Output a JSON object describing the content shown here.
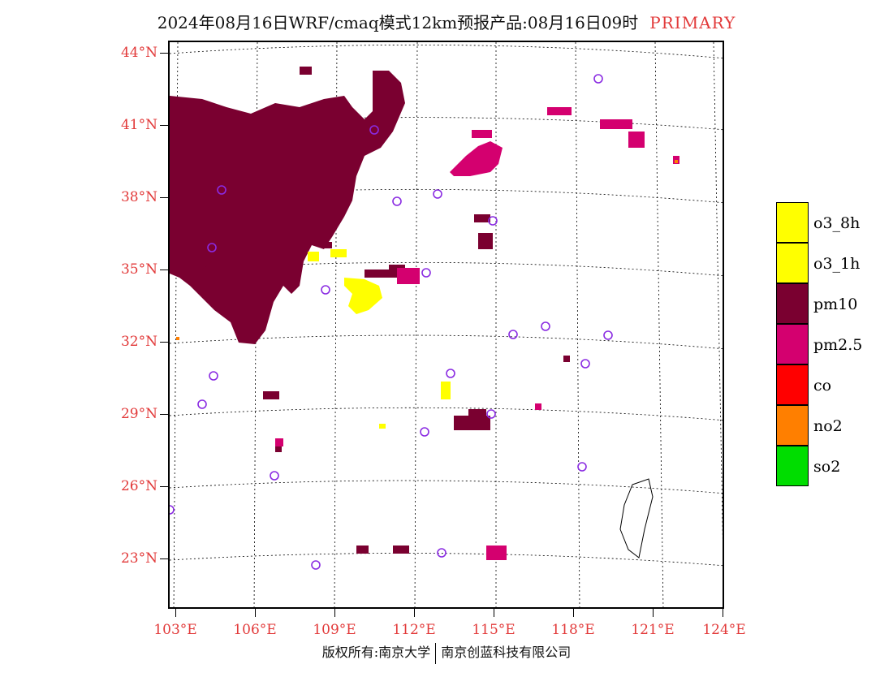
{
  "title": {
    "text": "2024年08月16日WRF/cmaq模式12km预报产品:08月16日09时",
    "tag": "PRIMARY"
  },
  "lat_labels": [
    "44°N",
    "41°N",
    "38°N",
    "35°N",
    "32°N",
    "29°N",
    "26°N",
    "23°N"
  ],
  "lon_labels": [
    "103°E",
    "106°E",
    "109°E",
    "112°E",
    "115°E",
    "118°E",
    "121°E",
    "124°E"
  ],
  "legend": [
    {
      "label": "o3_8h",
      "color": "#ffff00"
    },
    {
      "label": "o3_1h",
      "color": "#ffff00"
    },
    {
      "label": "pm10",
      "color": "#7a0030"
    },
    {
      "label": "pm2.5",
      "color": "#d4006f"
    },
    {
      "label": "co",
      "color": "#ff0000"
    },
    {
      "label": "no2",
      "color": "#ff7f00"
    },
    {
      "label": "so2",
      "color": "#00dd00"
    }
  ],
  "footer": {
    "left": "版权所有:南京大学",
    "right": "南京创蓝科技有限公司"
  },
  "colors": {
    "label_red": "#e23a3a",
    "station_marker": "#8a2be2"
  }
}
